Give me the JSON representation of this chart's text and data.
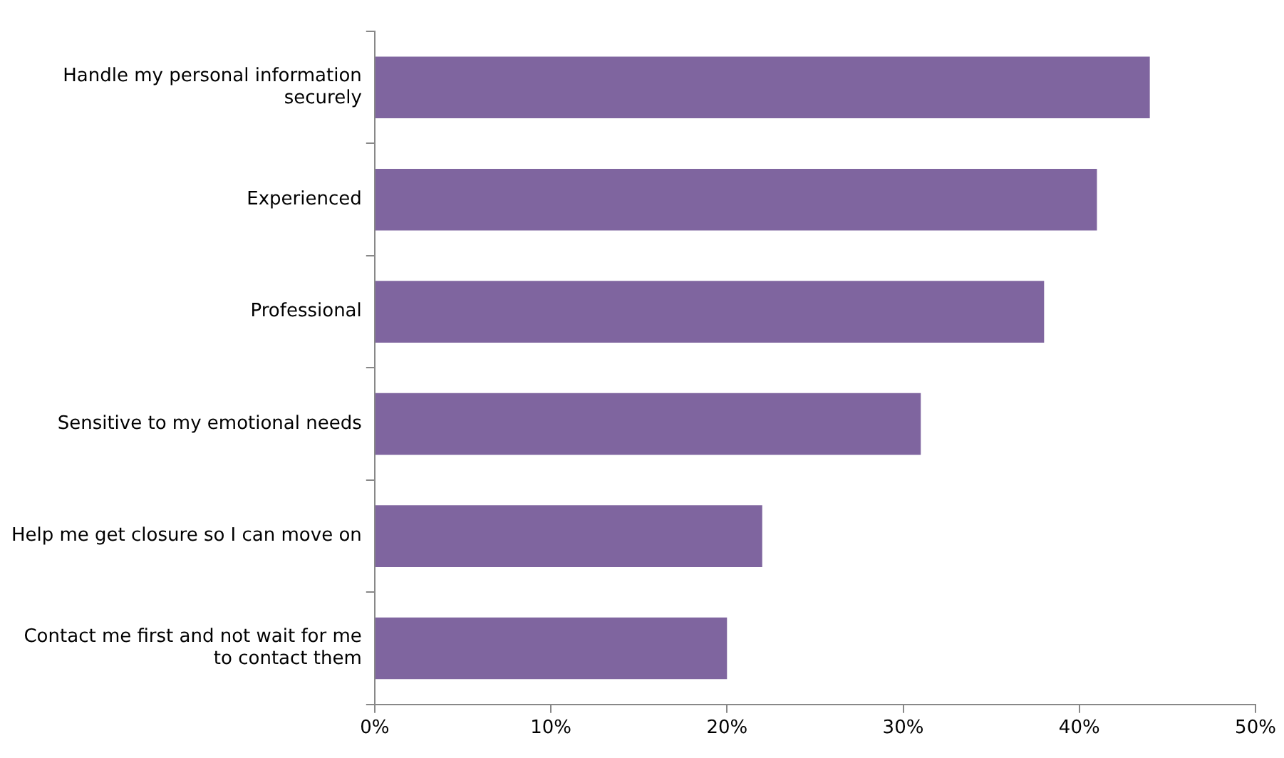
{
  "chart_data": {
    "type": "bar",
    "orientation": "horizontal",
    "categories": [
      "Handle my personal information securely",
      "Experienced",
      "Professional",
      "Sensitive to my emotional needs",
      "Help me get closure so I can move on",
      "Contact me first and not wait for me to contact them"
    ],
    "values": [
      44,
      41,
      38,
      31,
      22,
      20
    ],
    "color": "#7f659f",
    "xlim": [
      0,
      50
    ],
    "xticks": [
      {
        "value": 0,
        "label": "0%"
      },
      {
        "value": 10,
        "label": "10%"
      },
      {
        "value": 20,
        "label": "20%"
      },
      {
        "value": 30,
        "label": "30%"
      },
      {
        "value": 40,
        "label": "40%"
      },
      {
        "value": 50,
        "label": "50%"
      }
    ],
    "grid": false,
    "legend": false
  }
}
